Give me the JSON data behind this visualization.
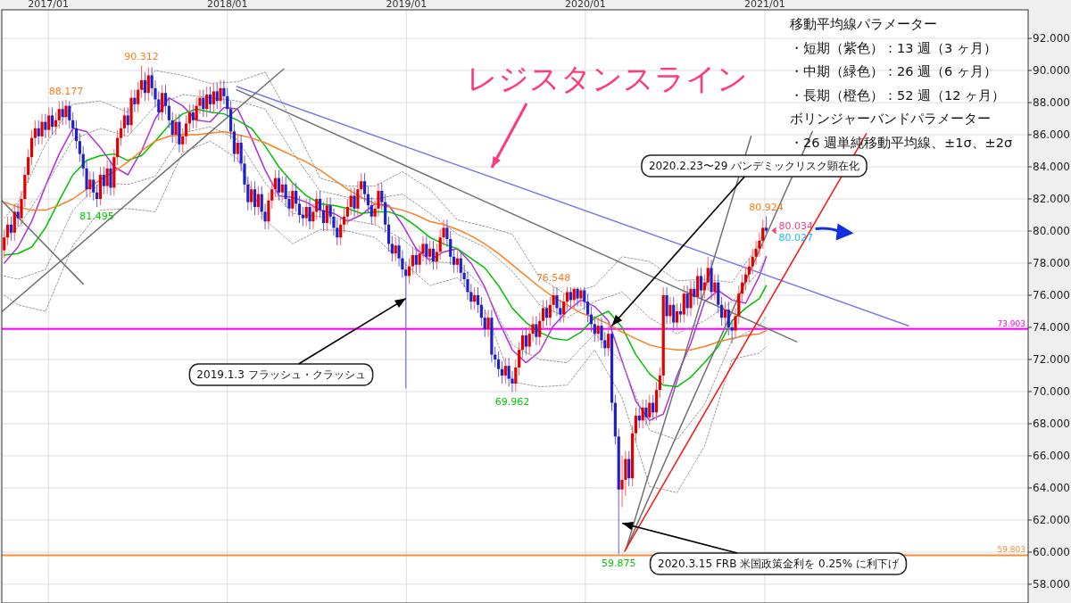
{
  "chart_data": {
    "type": "candlestick",
    "xlim": [
      "2016-09-28",
      "2022-06-22"
    ],
    "ylim": [
      56.83,
      93.78
    ],
    "xticks": [
      {
        "value": "2017-01-01",
        "label": "2017/01"
      },
      {
        "value": "2018-01-01",
        "label": "2018/01"
      },
      {
        "value": "2019-01-01",
        "label": "2019/01"
      },
      {
        "value": "2020-01-01",
        "label": "2020/01"
      },
      {
        "value": "2021-01-01",
        "label": "2021/01"
      }
    ],
    "yticks": [
      {
        "value": 58,
        "label": "58.000"
      },
      {
        "value": 60,
        "label": "60.000"
      },
      {
        "value": 62,
        "label": "62.000"
      },
      {
        "value": 64,
        "label": "64.000"
      },
      {
        "value": 66,
        "label": "66.000"
      },
      {
        "value": 68,
        "label": "68.000"
      },
      {
        "value": 70,
        "label": "70.000"
      },
      {
        "value": 72,
        "label": "72.000"
      },
      {
        "value": 74,
        "label": "74.000"
      },
      {
        "value": 76,
        "label": "76.000"
      },
      {
        "value": 78,
        "label": "78.000"
      },
      {
        "value": 80,
        "label": "80.000"
      },
      {
        "value": 82,
        "label": "82.000"
      },
      {
        "value": 84,
        "label": "84.000"
      },
      {
        "value": 86,
        "label": "86.000"
      },
      {
        "value": 88,
        "label": "88.000"
      },
      {
        "value": 90,
        "label": "90.000"
      },
      {
        "value": 92,
        "label": "92.000"
      }
    ],
    "grid": true,
    "x": [
      "2016-10-03",
      "2016-10-10",
      "2016-10-17",
      "2016-10-24",
      "2016-10-31",
      "2016-11-07",
      "2016-11-14",
      "2016-11-21",
      "2016-11-28",
      "2016-12-05",
      "2016-12-12",
      "2016-12-19",
      "2016-12-26",
      "2017-01-02",
      "2017-01-09",
      "2017-01-16",
      "2017-01-23",
      "2017-01-30",
      "2017-02-06",
      "2017-02-13",
      "2017-02-20",
      "2017-02-27",
      "2017-03-06",
      "2017-03-13",
      "2017-03-20",
      "2017-03-27",
      "2017-04-03",
      "2017-04-10",
      "2017-04-17",
      "2017-04-24",
      "2017-05-01",
      "2017-05-08",
      "2017-05-15",
      "2017-05-22",
      "2017-05-29",
      "2017-06-05",
      "2017-06-12",
      "2017-06-19",
      "2017-06-26",
      "2017-07-03",
      "2017-07-10",
      "2017-07-17",
      "2017-07-24",
      "2017-07-31",
      "2017-08-07",
      "2017-08-14",
      "2017-08-21",
      "2017-08-28",
      "2017-09-04",
      "2017-09-11",
      "2017-09-18",
      "2017-09-25",
      "2017-10-02",
      "2017-10-09",
      "2017-10-16",
      "2017-10-23",
      "2017-10-30",
      "2017-11-06",
      "2017-11-13",
      "2017-11-20",
      "2017-11-27",
      "2017-12-04",
      "2017-12-11",
      "2017-12-18",
      "2017-12-25",
      "2018-01-01",
      "2018-01-08",
      "2018-01-15",
      "2018-01-22",
      "2018-01-29",
      "2018-02-05",
      "2018-02-12",
      "2018-02-19",
      "2018-02-26",
      "2018-03-05",
      "2018-03-12",
      "2018-03-19",
      "2018-03-26",
      "2018-04-02",
      "2018-04-09",
      "2018-04-16",
      "2018-04-23",
      "2018-04-30",
      "2018-05-07",
      "2018-05-14",
      "2018-05-21",
      "2018-05-28",
      "2018-06-04",
      "2018-06-11",
      "2018-06-18",
      "2018-06-25",
      "2018-07-02",
      "2018-07-09",
      "2018-07-16",
      "2018-07-23",
      "2018-07-30",
      "2018-08-06",
      "2018-08-13",
      "2018-08-20",
      "2018-08-27",
      "2018-09-03",
      "2018-09-10",
      "2018-09-17",
      "2018-09-24",
      "2018-10-01",
      "2018-10-08",
      "2018-10-15",
      "2018-10-22",
      "2018-10-29",
      "2018-11-05",
      "2018-11-12",
      "2018-11-19",
      "2018-11-26",
      "2018-12-03",
      "2018-12-10",
      "2018-12-17",
      "2018-12-24",
      "2018-12-31",
      "2019-01-07",
      "2019-01-14",
      "2019-01-21",
      "2019-01-28",
      "2019-02-04",
      "2019-02-11",
      "2019-02-18",
      "2019-02-25",
      "2019-03-04",
      "2019-03-11",
      "2019-03-18",
      "2019-03-25",
      "2019-04-01",
      "2019-04-08",
      "2019-04-15",
      "2019-04-22",
      "2019-04-29",
      "2019-05-06",
      "2019-05-13",
      "2019-05-20",
      "2019-05-27",
      "2019-06-03",
      "2019-06-10",
      "2019-06-17",
      "2019-06-24",
      "2019-07-01",
      "2019-07-08",
      "2019-07-15",
      "2019-07-22",
      "2019-07-29",
      "2019-08-05",
      "2019-08-12",
      "2019-08-19",
      "2019-08-26",
      "2019-09-02",
      "2019-09-09",
      "2019-09-16",
      "2019-09-23",
      "2019-09-30",
      "2019-10-07",
      "2019-10-14",
      "2019-10-21",
      "2019-10-28",
      "2019-11-04",
      "2019-11-11",
      "2019-11-18",
      "2019-11-25",
      "2019-12-02",
      "2019-12-09",
      "2019-12-16",
      "2019-12-23",
      "2019-12-30",
      "2020-01-06",
      "2020-01-13",
      "2020-01-20",
      "2020-01-27",
      "2020-02-03",
      "2020-02-10",
      "2020-02-17",
      "2020-02-24",
      "2020-03-02",
      "2020-03-09",
      "2020-03-16",
      "2020-03-23",
      "2020-03-30",
      "2020-04-06",
      "2020-04-13",
      "2020-04-20",
      "2020-04-27",
      "2020-05-04",
      "2020-05-11",
      "2020-05-18",
      "2020-05-25",
      "2020-06-01",
      "2020-06-08",
      "2020-06-15",
      "2020-06-22",
      "2020-06-29",
      "2020-07-06",
      "2020-07-13",
      "2020-07-20",
      "2020-07-27",
      "2020-08-03",
      "2020-08-10",
      "2020-08-17",
      "2020-08-24",
      "2020-08-31",
      "2020-09-07",
      "2020-09-14",
      "2020-09-21",
      "2020-09-28",
      "2020-10-05",
      "2020-10-12",
      "2020-10-19",
      "2020-10-26",
      "2020-11-02",
      "2020-11-09",
      "2020-11-16",
      "2020-11-23",
      "2020-11-30",
      "2020-12-07",
      "2020-12-14",
      "2020-12-21",
      "2020-12-28",
      "2021-01-04"
    ],
    "ohlc": [
      [
        78.8,
        80.1,
        78.3,
        79.6
      ],
      [
        79.6,
        80.9,
        79.1,
        80.4
      ],
      [
        80.4,
        80.9,
        79.4,
        79.9
      ],
      [
        79.9,
        81.7,
        79.4,
        81.2
      ],
      [
        81.2,
        81.7,
        80.3,
        80.8
      ],
      [
        80.8,
        82.5,
        80.3,
        82.0
      ],
      [
        82.0,
        84.0,
        81.5,
        83.5
      ],
      [
        83.5,
        85.1,
        83.0,
        84.6
      ],
      [
        84.6,
        86.3,
        84.1,
        85.8
      ],
      [
        85.8,
        86.9,
        85.3,
        86.4
      ],
      [
        86.4,
        86.9,
        85.4,
        85.9
      ],
      [
        85.9,
        87.3,
        85.4,
        86.8
      ],
      [
        86.8,
        87.3,
        85.8,
        86.3
      ],
      [
        86.3,
        87.7,
        85.8,
        87.2
      ],
      [
        87.2,
        87.7,
        86.0,
        86.5
      ],
      [
        86.5,
        87.4,
        86.0,
        86.9
      ],
      [
        86.9,
        88.1,
        86.4,
        87.6
      ],
      [
        87.6,
        88.1,
        86.6,
        87.1
      ],
      [
        87.1,
        88.177,
        86.6,
        87.8
      ],
      [
        87.8,
        88.1,
        86.4,
        86.9
      ],
      [
        86.9,
        87.4,
        85.9,
        86.4
      ],
      [
        86.4,
        86.9,
        85.1,
        85.6
      ],
      [
        85.6,
        86.1,
        84.3,
        84.8
      ],
      [
        84.8,
        85.3,
        83.4,
        83.9
      ],
      [
        83.9,
        84.4,
        82.1,
        82.6
      ],
      [
        82.6,
        83.7,
        82.1,
        83.2
      ],
      [
        83.2,
        83.7,
        81.9,
        82.4
      ],
      [
        82.4,
        82.9,
        81.495,
        82.0
      ],
      [
        82.0,
        84.0,
        81.6,
        83.5
      ],
      [
        83.5,
        84.0,
        82.3,
        82.8
      ],
      [
        82.8,
        84.4,
        82.3,
        83.9
      ],
      [
        83.9,
        84.4,
        82.2,
        82.7
      ],
      [
        82.7,
        85.1,
        82.2,
        84.6
      ],
      [
        84.6,
        86.3,
        84.1,
        85.8
      ],
      [
        85.8,
        86.9,
        85.3,
        86.4
      ],
      [
        86.4,
        87.7,
        85.9,
        87.2
      ],
      [
        87.2,
        87.7,
        86.1,
        86.6
      ],
      [
        86.6,
        88.8,
        86.1,
        88.3
      ],
      [
        88.3,
        88.8,
        87.4,
        87.9
      ],
      [
        87.9,
        89.3,
        87.4,
        88.8
      ],
      [
        88.8,
        90.312,
        88.3,
        89.4
      ],
      [
        89.4,
        89.9,
        88.1,
        88.6
      ],
      [
        88.6,
        90.2,
        88.1,
        89.7
      ],
      [
        89.7,
        90.2,
        88.4,
        88.9
      ],
      [
        88.9,
        89.4,
        87.7,
        88.2
      ],
      [
        88.2,
        88.7,
        86.9,
        87.4
      ],
      [
        87.4,
        89.1,
        86.9,
        88.6
      ],
      [
        88.6,
        89.1,
        87.3,
        87.8
      ],
      [
        87.8,
        88.3,
        86.4,
        86.9
      ],
      [
        86.9,
        87.4,
        85.5,
        86.0
      ],
      [
        86.0,
        87.3,
        85.5,
        86.8
      ],
      [
        86.8,
        87.3,
        84.9,
        85.4
      ],
      [
        85.4,
        86.4,
        84.9,
        85.9
      ],
      [
        85.9,
        87.2,
        85.4,
        86.7
      ],
      [
        86.7,
        87.9,
        86.2,
        87.4
      ],
      [
        87.4,
        87.9,
        86.4,
        86.9
      ],
      [
        86.9,
        88.3,
        86.4,
        87.8
      ],
      [
        87.8,
        88.8,
        87.3,
        88.3
      ],
      [
        88.3,
        88.8,
        87.1,
        87.6
      ],
      [
        87.6,
        89.0,
        87.1,
        88.5
      ],
      [
        88.5,
        89.0,
        87.4,
        87.9
      ],
      [
        87.9,
        89.2,
        87.4,
        88.7
      ],
      [
        88.7,
        89.2,
        87.6,
        88.1
      ],
      [
        88.1,
        89.4,
        87.6,
        88.9
      ],
      [
        88.9,
        89.4,
        87.9,
        88.4
      ],
      [
        88.4,
        88.9,
        87.1,
        87.6
      ],
      [
        87.6,
        88.1,
        85.7,
        86.2
      ],
      [
        86.2,
        86.7,
        84.3,
        84.8
      ],
      [
        84.8,
        86.0,
        84.3,
        85.5
      ],
      [
        85.5,
        86.0,
        83.7,
        84.2
      ],
      [
        84.2,
        84.7,
        82.4,
        82.9
      ],
      [
        82.9,
        83.4,
        81.3,
        81.8
      ],
      [
        81.8,
        83.1,
        81.3,
        82.6
      ],
      [
        82.6,
        83.1,
        81.0,
        81.5
      ],
      [
        81.5,
        82.8,
        81.0,
        82.3
      ],
      [
        82.3,
        82.8,
        80.7,
        81.2
      ],
      [
        81.2,
        81.7,
        80.1,
        80.6
      ],
      [
        80.6,
        82.4,
        80.1,
        81.9
      ],
      [
        81.9,
        83.1,
        81.4,
        82.6
      ],
      [
        82.6,
        83.8,
        82.1,
        83.3
      ],
      [
        83.3,
        83.8,
        81.9,
        82.4
      ],
      [
        82.4,
        83.4,
        81.9,
        82.9
      ],
      [
        82.9,
        83.4,
        81.5,
        82.0
      ],
      [
        82.0,
        82.5,
        80.9,
        81.4
      ],
      [
        81.4,
        83.0,
        80.9,
        82.5
      ],
      [
        82.5,
        83.0,
        81.2,
        81.7
      ],
      [
        81.7,
        82.2,
        80.5,
        81.0
      ],
      [
        81.0,
        81.5,
        80.3,
        80.8
      ],
      [
        80.8,
        82.0,
        80.3,
        81.5
      ],
      [
        81.5,
        82.0,
        80.1,
        80.6
      ],
      [
        80.6,
        81.7,
        80.1,
        81.2
      ],
      [
        81.2,
        82.5,
        80.7,
        82.0
      ],
      [
        82.0,
        82.5,
        80.8,
        81.3
      ],
      [
        81.3,
        81.8,
        80.0,
        80.5
      ],
      [
        80.5,
        82.1,
        80.0,
        81.6
      ],
      [
        81.6,
        82.1,
        80.4,
        80.9
      ],
      [
        80.9,
        81.4,
        79.7,
        80.2
      ],
      [
        80.2,
        80.7,
        79.1,
        79.6
      ],
      [
        79.6,
        80.9,
        79.1,
        80.4
      ],
      [
        80.4,
        81.4,
        79.9,
        80.9
      ],
      [
        80.9,
        82.0,
        80.4,
        81.5
      ],
      [
        81.5,
        82.7,
        81.0,
        82.2
      ],
      [
        82.2,
        82.7,
        80.9,
        81.4
      ],
      [
        81.4,
        83.1,
        80.9,
        82.6
      ],
      [
        82.6,
        83.6,
        82.1,
        83.1
      ],
      [
        83.1,
        83.6,
        81.8,
        82.3
      ],
      [
        82.3,
        82.8,
        81.1,
        81.6
      ],
      [
        81.6,
        82.1,
        80.4,
        80.9
      ],
      [
        80.9,
        81.9,
        80.4,
        81.4
      ],
      [
        81.4,
        83.0,
        80.9,
        82.5
      ],
      [
        82.5,
        83.0,
        81.3,
        81.8
      ],
      [
        81.8,
        82.3,
        79.9,
        80.4
      ],
      [
        80.4,
        80.9,
        78.7,
        79.2
      ],
      [
        79.2,
        79.7,
        78.1,
        78.6
      ],
      [
        78.6,
        79.6,
        78.1,
        79.1
      ],
      [
        79.1,
        79.6,
        77.8,
        78.3
      ],
      [
        78.3,
        78.8,
        77.1,
        77.6
      ],
      [
        77.6,
        78.1,
        70.2,
        77.2
      ],
      [
        77.2,
        78.3,
        76.7,
        77.8
      ],
      [
        77.8,
        79.0,
        77.3,
        78.5
      ],
      [
        78.5,
        79.0,
        77.4,
        77.9
      ],
      [
        77.9,
        79.1,
        77.4,
        78.6
      ],
      [
        78.6,
        79.7,
        78.1,
        79.2
      ],
      [
        79.2,
        79.7,
        77.9,
        78.4
      ],
      [
        78.4,
        79.4,
        77.9,
        78.9
      ],
      [
        78.9,
        79.4,
        77.6,
        78.1
      ],
      [
        78.1,
        79.2,
        77.6,
        78.7
      ],
      [
        78.7,
        80.1,
        78.2,
        79.6
      ],
      [
        79.6,
        80.7,
        79.1,
        80.2
      ],
      [
        80.2,
        80.7,
        79.0,
        79.5
      ],
      [
        79.5,
        80.0,
        77.9,
        78.4
      ],
      [
        78.4,
        78.9,
        77.4,
        77.9
      ],
      [
        77.9,
        78.8,
        77.4,
        78.3
      ],
      [
        78.3,
        78.8,
        76.9,
        77.4
      ],
      [
        77.4,
        77.9,
        76.5,
        77.0
      ],
      [
        77.0,
        77.5,
        75.7,
        76.2
      ],
      [
        76.2,
        76.7,
        75.1,
        75.6
      ],
      [
        75.6,
        76.5,
        75.1,
        76.0
      ],
      [
        76.0,
        76.5,
        74.9,
        75.4
      ],
      [
        75.4,
        75.9,
        74.1,
        74.6
      ],
      [
        74.6,
        75.1,
        73.4,
        73.9
      ],
      [
        73.9,
        75.1,
        73.4,
        74.6
      ],
      [
        74.6,
        75.1,
        71.8,
        72.3
      ],
      [
        72.3,
        72.8,
        71.5,
        72.0
      ],
      [
        72.0,
        72.5,
        70.9,
        71.4
      ],
      [
        71.4,
        71.9,
        70.5,
        71.0
      ],
      [
        71.0,
        72.1,
        70.5,
        71.6
      ],
      [
        71.6,
        72.1,
        70.3,
        70.8
      ],
      [
        70.8,
        71.3,
        69.962,
        70.5
      ],
      [
        70.5,
        72.0,
        70.0,
        71.5
      ],
      [
        71.5,
        73.1,
        71.0,
        72.6
      ],
      [
        72.6,
        74.0,
        72.1,
        73.5
      ],
      [
        73.5,
        74.0,
        72.3,
        72.8
      ],
      [
        72.8,
        74.1,
        72.3,
        73.6
      ],
      [
        73.6,
        74.7,
        73.1,
        74.2
      ],
      [
        74.2,
        74.7,
        72.9,
        73.4
      ],
      [
        73.4,
        74.9,
        72.9,
        74.4
      ],
      [
        74.4,
        75.7,
        73.9,
        75.2
      ],
      [
        75.2,
        75.7,
        74.1,
        74.6
      ],
      [
        74.6,
        75.9,
        74.1,
        75.4
      ],
      [
        75.4,
        76.548,
        74.9,
        76.0
      ],
      [
        76.0,
        76.5,
        74.7,
        75.2
      ],
      [
        75.2,
        75.7,
        74.3,
        74.8
      ],
      [
        74.8,
        76.1,
        74.3,
        75.6
      ],
      [
        75.6,
        76.5,
        75.1,
        76.2
      ],
      [
        76.2,
        76.5,
        75.2,
        75.7
      ],
      [
        75.7,
        76.5,
        75.2,
        76.4
      ],
      [
        76.4,
        76.5,
        75.3,
        75.8
      ],
      [
        75.8,
        76.5,
        75.3,
        76.3
      ],
      [
        76.3,
        76.5,
        75.1,
        75.6
      ],
      [
        75.6,
        76.1,
        74.3,
        74.8
      ],
      [
        74.8,
        75.3,
        73.7,
        74.2
      ],
      [
        74.2,
        74.7,
        73.1,
        73.6
      ],
      [
        73.6,
        74.6,
        73.1,
        74.1
      ],
      [
        74.1,
        74.6,
        72.7,
        73.2
      ],
      [
        73.2,
        73.7,
        72.2,
        72.7
      ],
      [
        72.7,
        74.1,
        72.2,
        73.6
      ],
      [
        73.6,
        74.1,
        68.8,
        69.3
      ],
      [
        69.3,
        69.8,
        66.7,
        67.2
      ],
      [
        67.2,
        67.7,
        59.875,
        63.9
      ],
      [
        63.9,
        66.0,
        62.8,
        64.5
      ],
      [
        64.5,
        66.3,
        63.5,
        65.8
      ],
      [
        65.8,
        66.3,
        64.1,
        64.6
      ],
      [
        64.6,
        67.9,
        64.1,
        67.4
      ],
      [
        67.4,
        69.0,
        66.9,
        68.5
      ],
      [
        68.5,
        69.0,
        67.7,
        68.2
      ],
      [
        68.2,
        69.5,
        67.7,
        69.0
      ],
      [
        69.0,
        69.5,
        67.9,
        68.4
      ],
      [
        68.4,
        69.8,
        67.9,
        69.3
      ],
      [
        69.3,
        69.8,
        68.2,
        68.7
      ],
      [
        68.7,
        70.6,
        68.2,
        70.1
      ],
      [
        70.1,
        71.5,
        69.6,
        71.0
      ],
      [
        71.0,
        76.5,
        70.5,
        76.0
      ],
      [
        76.0,
        76.5,
        74.2,
        74.7
      ],
      [
        74.7,
        75.9,
        74.2,
        75.4
      ],
      [
        75.4,
        75.9,
        73.8,
        74.3
      ],
      [
        74.3,
        75.5,
        73.8,
        75.0
      ],
      [
        75.0,
        75.5,
        74.3,
        74.8
      ],
      [
        74.8,
        76.6,
        74.3,
        76.1
      ],
      [
        76.1,
        76.6,
        74.7,
        75.2
      ],
      [
        75.2,
        76.9,
        74.7,
        76.4
      ],
      [
        76.4,
        76.9,
        75.4,
        75.9
      ],
      [
        75.9,
        77.7,
        75.4,
        77.2
      ],
      [
        77.2,
        77.7,
        75.8,
        76.3
      ],
      [
        76.3,
        77.3,
        75.8,
        76.8
      ],
      [
        76.8,
        78.4,
        76.3,
        77.7
      ],
      [
        77.7,
        78.2,
        75.7,
        76.2
      ],
      [
        76.2,
        77.3,
        75.7,
        76.8
      ],
      [
        76.8,
        77.3,
        74.9,
        75.4
      ],
      [
        75.4,
        75.9,
        74.1,
        74.6
      ],
      [
        74.6,
        75.6,
        74.1,
        75.1
      ],
      [
        75.1,
        75.6,
        73.5,
        74.0
      ],
      [
        74.0,
        74.5,
        73.0,
        73.8
      ],
      [
        73.8,
        75.2,
        73.3,
        74.7
      ],
      [
        74.7,
        76.6,
        74.2,
        76.1
      ],
      [
        76.1,
        77.3,
        75.6,
        76.8
      ],
      [
        76.8,
        77.8,
        76.3,
        77.3
      ],
      [
        77.3,
        78.3,
        76.8,
        77.8
      ],
      [
        77.8,
        78.9,
        77.3,
        78.4
      ],
      [
        78.4,
        79.4,
        77.9,
        78.9
      ],
      [
        78.9,
        79.9,
        78.4,
        79.4
      ],
      [
        79.4,
        80.7,
        78.9,
        80.2
      ],
      [
        80.2,
        80.924,
        79.9,
        80.03
      ]
    ],
    "series": [
      {
        "type": "line",
        "color": "#b030e0",
        "x": [
          "2016-10-03",
          "2016-10-31",
          "2016-11-28",
          "2016-12-26",
          "2017-01-23",
          "2017-02-20",
          "2017-03-20",
          "2017-04-17",
          "2017-05-15",
          "2017-06-12",
          "2017-07-10",
          "2017-08-07",
          "2017-09-04",
          "2017-10-02",
          "2017-10-30",
          "2017-11-27",
          "2017-12-25",
          "2018-01-22",
          "2018-02-19",
          "2018-03-19",
          "2018-04-16",
          "2018-05-14",
          "2018-06-11",
          "2018-07-09",
          "2018-08-06",
          "2018-09-03",
          "2018-10-01",
          "2018-10-29",
          "2018-11-26",
          "2018-12-24",
          "2019-01-21",
          "2019-02-18",
          "2019-03-18",
          "2019-04-15",
          "2019-05-13",
          "2019-06-10",
          "2019-07-08",
          "2019-08-05",
          "2019-09-02",
          "2019-09-30",
          "2019-10-28",
          "2019-11-25",
          "2019-12-23",
          "2020-01-20",
          "2020-02-17",
          "2020-03-16",
          "2020-04-13",
          "2020-05-11",
          "2020-06-08",
          "2020-07-06",
          "2020-08-03",
          "2020-08-31",
          "2020-09-28",
          "2020-10-26",
          "2020-11-23",
          "2020-12-21",
          "2021-01-04"
        ],
        "values": [
          78.0,
          79.0,
          80.6,
          82.8,
          84.8,
          86.4,
          86.2,
          85.2,
          84.0,
          83.5,
          85.0,
          87.0,
          88.3,
          87.8,
          86.9,
          86.8,
          87.7,
          87.6,
          85.8,
          83.8,
          82.2,
          82.1,
          81.8,
          81.3,
          81.1,
          80.6,
          81.0,
          81.7,
          81.6,
          80.4,
          78.9,
          78.2,
          78.7,
          78.9,
          78.0,
          76.5,
          74.4,
          72.6,
          71.8,
          72.5,
          74.1,
          75.0,
          75.7,
          75.3,
          74.4,
          71.9,
          69.4,
          68.2,
          68.6,
          71.0,
          73.0,
          75.6,
          76.3,
          75.7,
          75.5,
          77.2,
          78.4
        ]
      },
      {
        "type": "line",
        "color": "#00c000",
        "x": [
          "2016-10-03",
          "2016-10-31",
          "2016-11-28",
          "2016-12-26",
          "2017-01-23",
          "2017-02-20",
          "2017-03-20",
          "2017-04-17",
          "2017-05-15",
          "2017-06-12",
          "2017-07-10",
          "2017-08-07",
          "2017-09-04",
          "2017-10-02",
          "2017-10-30",
          "2017-11-27",
          "2017-12-25",
          "2018-01-22",
          "2018-02-19",
          "2018-03-19",
          "2018-04-16",
          "2018-05-14",
          "2018-06-11",
          "2018-07-09",
          "2018-08-06",
          "2018-09-03",
          "2018-10-01",
          "2018-10-29",
          "2018-11-26",
          "2018-12-24",
          "2019-01-21",
          "2019-02-18",
          "2019-03-18",
          "2019-04-15",
          "2019-05-13",
          "2019-06-10",
          "2019-07-08",
          "2019-08-05",
          "2019-09-02",
          "2019-09-30",
          "2019-10-28",
          "2019-11-25",
          "2019-12-23",
          "2020-01-20",
          "2020-02-17",
          "2020-03-16",
          "2020-04-13",
          "2020-05-11",
          "2020-06-08",
          "2020-07-06",
          "2020-08-03",
          "2020-08-31",
          "2020-09-28",
          "2020-10-26",
          "2020-11-23",
          "2020-12-21",
          "2021-01-04"
        ],
        "values": [
          78.5,
          78.6,
          79.0,
          80.2,
          81.9,
          83.5,
          84.4,
          84.7,
          84.8,
          84.4,
          84.7,
          85.6,
          86.6,
          87.3,
          87.6,
          87.4,
          87.3,
          86.9,
          86.4,
          85.3,
          84.0,
          83.0,
          82.2,
          81.7,
          81.6,
          81.4,
          81.1,
          81.2,
          81.2,
          80.9,
          80.3,
          79.6,
          79.2,
          78.9,
          78.3,
          77.7,
          76.6,
          75.2,
          74.3,
          73.7,
          73.3,
          73.2,
          73.7,
          74.6,
          75.0,
          74.0,
          72.3,
          71.1,
          70.4,
          70.3,
          70.9,
          71.8,
          72.8,
          74.4,
          75.2,
          75.8,
          76.6
        ]
      },
      {
        "type": "line",
        "color": "#ff8020",
        "x": [
          "2016-10-03",
          "2016-10-31",
          "2016-11-28",
          "2016-12-26",
          "2017-01-23",
          "2017-02-20",
          "2017-03-20",
          "2017-04-17",
          "2017-05-15",
          "2017-06-12",
          "2017-07-10",
          "2017-08-07",
          "2017-09-04",
          "2017-10-02",
          "2017-10-30",
          "2017-11-27",
          "2017-12-25",
          "2018-01-22",
          "2018-02-19",
          "2018-03-19",
          "2018-04-16",
          "2018-05-14",
          "2018-06-11",
          "2018-07-09",
          "2018-08-06",
          "2018-09-03",
          "2018-10-01",
          "2018-10-29",
          "2018-11-26",
          "2018-12-24",
          "2019-01-21",
          "2019-02-18",
          "2019-03-18",
          "2019-04-15",
          "2019-05-13",
          "2019-06-10",
          "2019-07-08",
          "2019-08-05",
          "2019-09-02",
          "2019-09-30",
          "2019-10-28",
          "2019-11-25",
          "2019-12-23",
          "2020-01-20",
          "2020-02-17",
          "2020-03-16",
          "2020-04-13",
          "2020-05-11",
          "2020-06-08",
          "2020-07-06",
          "2020-08-03",
          "2020-08-31",
          "2020-09-28",
          "2020-10-26",
          "2020-11-23",
          "2020-12-21",
          "2021-01-04"
        ],
        "values": [
          81.8,
          81.5,
          81.3,
          81.3,
          81.6,
          82.0,
          82.6,
          83.2,
          83.7,
          84.3,
          85.0,
          85.6,
          85.9,
          86.0,
          86.0,
          86.1,
          86.2,
          86.0,
          85.8,
          85.5,
          85.1,
          84.7,
          84.3,
          83.8,
          83.2,
          82.6,
          82.1,
          81.7,
          81.5,
          81.3,
          81.0,
          80.6,
          80.4,
          80.1,
          79.7,
          79.2,
          78.6,
          77.9,
          77.2,
          76.5,
          75.9,
          75.4,
          74.9,
          74.6,
          74.2,
          73.7,
          73.3,
          72.9,
          72.7,
          72.6,
          72.6,
          72.8,
          73.1,
          73.3,
          73.5,
          73.6,
          73.8
        ]
      },
      {
        "type": "line",
        "color": "#999999",
        "line_style": "dotted",
        "x": [
          "2016-10-03",
          "2016-10-31",
          "2016-12-26",
          "2017-02-20",
          "2017-04-17",
          "2017-06-12",
          "2017-08-07",
          "2017-10-02",
          "2017-11-27",
          "2018-01-22",
          "2018-03-19",
          "2018-05-14",
          "2018-07-09",
          "2018-09-03",
          "2018-10-29",
          "2018-12-24",
          "2019-02-18",
          "2019-04-15",
          "2019-06-10",
          "2019-08-05",
          "2019-09-30",
          "2019-11-25",
          "2020-01-20",
          "2020-03-16",
          "2020-05-11",
          "2020-07-06",
          "2020-08-31",
          "2020-10-26",
          "2020-12-21",
          "2021-01-04"
        ],
        "values": [
          80.8,
          81.8,
          85.4,
          87.9,
          88.1,
          87.4,
          90.0,
          89.7,
          89.2,
          89.3,
          89.9,
          86.8,
          83.3,
          82.8,
          82.8,
          83.7,
          82.6,
          80.7,
          80.3,
          79.8,
          77.1,
          76.0,
          76.6,
          78.4,
          78.1,
          76.9,
          77.0,
          76.8,
          79.2,
          80.4
        ]
      },
      {
        "type": "line",
        "color": "#999999",
        "line_style": "dotted",
        "x": [
          "2016-10-03",
          "2016-10-31",
          "2016-12-26",
          "2017-02-20",
          "2017-04-17",
          "2017-06-12",
          "2017-08-07",
          "2017-10-02",
          "2017-11-27",
          "2018-01-22",
          "2018-03-19",
          "2018-05-14",
          "2018-07-09",
          "2018-09-03",
          "2018-10-29",
          "2018-12-24",
          "2019-02-18",
          "2019-04-15",
          "2019-06-10",
          "2019-08-05",
          "2019-09-30",
          "2019-11-25",
          "2020-01-20",
          "2020-03-16",
          "2020-05-11",
          "2020-07-06",
          "2020-08-31",
          "2020-10-26",
          "2020-12-21",
          "2021-01-04"
        ],
        "values": [
          79.6,
          80.2,
          82.8,
          85.7,
          86.4,
          85.9,
          87.8,
          88.5,
          88.3,
          88.1,
          87.6,
          84.9,
          82.5,
          82.1,
          82.0,
          82.3,
          81.1,
          79.8,
          79.0,
          77.5,
          75.4,
          74.6,
          75.6,
          76.2,
          74.6,
          73.6,
          74.4,
          75.6,
          77.5,
          78.5
        ]
      },
      {
        "type": "line",
        "color": "#999999",
        "line_style": "dotted",
        "x": [
          "2016-10-03",
          "2016-10-31",
          "2016-12-26",
          "2017-02-20",
          "2017-04-17",
          "2017-06-12",
          "2017-08-07",
          "2017-10-02",
          "2017-11-27",
          "2018-01-22",
          "2018-03-19",
          "2018-05-14",
          "2018-07-09",
          "2018-09-03",
          "2018-10-29",
          "2018-12-24",
          "2019-02-18",
          "2019-04-15",
          "2019-06-10",
          "2019-08-05",
          "2019-09-30",
          "2019-11-25",
          "2020-01-20",
          "2020-03-16",
          "2020-05-11",
          "2020-07-06",
          "2020-08-31",
          "2020-10-26",
          "2020-12-21",
          "2021-01-04"
        ],
        "values": [
          77.2,
          77.0,
          77.6,
          81.3,
          83.0,
          82.9,
          83.4,
          86.1,
          86.5,
          85.7,
          83.0,
          81.1,
          80.9,
          80.7,
          80.4,
          79.5,
          78.1,
          78.0,
          76.4,
          72.9,
          72.0,
          71.8,
          73.6,
          71.8,
          67.6,
          67.0,
          69.2,
          73.2,
          74.1,
          74.7
        ]
      },
      {
        "type": "line",
        "color": "#999999",
        "line_style": "dotted",
        "x": [
          "2016-10-03",
          "2016-10-31",
          "2016-12-26",
          "2017-02-20",
          "2017-04-17",
          "2017-06-12",
          "2017-08-07",
          "2017-10-02",
          "2017-11-27",
          "2018-01-22",
          "2018-03-19",
          "2018-05-14",
          "2018-07-09",
          "2018-09-03",
          "2018-10-29",
          "2018-12-24",
          "2019-02-18",
          "2019-04-15",
          "2019-06-10",
          "2019-08-05",
          "2019-09-30",
          "2019-11-25",
          "2020-01-20",
          "2020-03-16",
          "2020-05-11",
          "2020-07-06",
          "2020-08-31",
          "2020-10-26",
          "2020-12-21",
          "2021-01-04"
        ],
        "values": [
          76.0,
          75.4,
          75.0,
          79.1,
          81.3,
          81.4,
          81.2,
          84.9,
          85.6,
          84.5,
          80.7,
          79.2,
          80.1,
          80.0,
          79.6,
          78.1,
          76.6,
          77.1,
          75.1,
          70.6,
          70.3,
          70.4,
          72.6,
          69.6,
          64.1,
          63.7,
          66.6,
          72.0,
          72.4,
          72.8
        ]
      },
      {
        "type": "line",
        "color": "#7878f0",
        "x": [
          "2018-01-20",
          "2021-10-21"
        ],
        "values": [
          89.0,
          74.1
        ]
      },
      {
        "type": "line",
        "color": "#707070",
        "x": [
          "2018-01-20",
          "2021-03-07"
        ],
        "values": [
          88.8,
          73.1
        ]
      },
      {
        "type": "line",
        "color": "#707070",
        "x": [
          "2016-09-28",
          "2018-04-26"
        ],
        "values": [
          74.97,
          90.1
        ]
      },
      {
        "type": "line",
        "color": "#707070",
        "x": [
          "2016-09-28",
          "2017-03-13"
        ],
        "values": [
          81.9,
          76.7
        ]
      },
      {
        "type": "line",
        "color": "#707070",
        "x": [
          "2020-03-24",
          "2020-12-04"
        ],
        "values": [
          60.2,
          85.9
        ]
      },
      {
        "type": "line",
        "color": "#707070",
        "x": [
          "2020-03-24",
          "2021-04-08"
        ],
        "values": [
          60.2,
          86.2
        ]
      },
      {
        "type": "line",
        "color": "#ff1010",
        "x": [
          "2020-03-21",
          "2021-07-27"
        ],
        "values": [
          60.05,
          86.06
        ]
      }
    ],
    "ref_lines": [
      {
        "axis": "y",
        "value": 73.903,
        "label": "73.903",
        "color": "#ff00ff"
      },
      {
        "axis": "y",
        "value": 59.803,
        "label": "59.803",
        "color": "#ff8c3a"
      }
    ],
    "annotations": [
      "レジスタンスライン",
      {
        "text": "2019.1.3 フラッシュ・クラッシュ",
        "x": "2018-12-31",
        "y": 75.8
      },
      {
        "text": "2020.2.23〜29 パンデミックリスク顕在化",
        "x": "2020-02-24",
        "y": 74.1
      },
      {
        "text": "2020.3.15 FRB 米国政策金利を 0.25% に利下げ",
        "x": "2020-03-16",
        "y": 61.8
      },
      {
        "text": "88.177",
        "x": "2017-02-06",
        "y": 88.177
      },
      {
        "text": "81.495",
        "x": "2017-04-10",
        "y": 81.495
      },
      {
        "text": "90.312",
        "x": "2017-07-10",
        "y": 90.312
      },
      {
        "text": "76.548",
        "x": "2019-10-28",
        "y": 76.548
      },
      {
        "text": "69.962",
        "x": "2019-08-05",
        "y": 69.962
      },
      {
        "text": "59.875",
        "x": "2020-03-09",
        "y": 59.875
      },
      {
        "text": "80.924",
        "x": "2021-01-04",
        "y": 80.924
      },
      {
        "text": "80.034",
        "x": "2021-01-04",
        "y": 80.034
      },
      {
        "text": "80.027",
        "x": "2021-01-04",
        "y": 80.027
      },
      "移動平均線パラメーター",
      "・短期（紫色）：13 週（3 ヶ月）",
      "・中期（緑色）：26 週（6 ヶ月）",
      "・長期（橙色）：52 週（12 ヶ月）",
      "ボリンジャーバンドパラメーター",
      "・26 週単純移動平均線、±1σ、±2σ"
    ]
  }
}
